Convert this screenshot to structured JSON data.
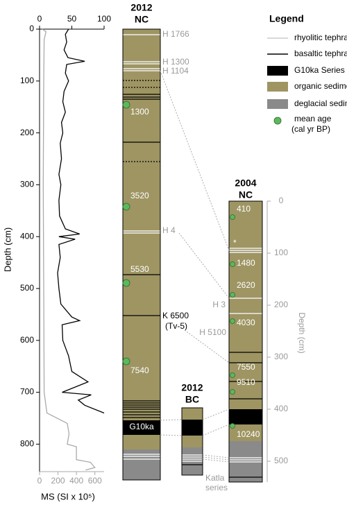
{
  "chart_data": [
    {
      "type": "line",
      "ylabel": "Depth (cm)",
      "xlabel": "MS (SI x 10⁵)",
      "ylim": [
        0,
        853
      ],
      "yticks": [
        0,
        100,
        200,
        300,
        400,
        500,
        600,
        700,
        800
      ],
      "xlim": [
        0,
        100
      ],
      "xticks": [
        0,
        50,
        100
      ],
      "x2lim": [
        0,
        700
      ],
      "x2ticks": [
        0,
        200,
        400,
        600
      ],
      "series": [
        {
          "color": "#000000",
          "depth": [
            0,
            10,
            25,
            40,
            55,
            62,
            68,
            85,
            100,
            120,
            140,
            160,
            180,
            200,
            220,
            250,
            280,
            300,
            330,
            360,
            385,
            395,
            400,
            405,
            415,
            440,
            470,
            500,
            530,
            555,
            562,
            570,
            600,
            630,
            660,
            680,
            690,
            700,
            705,
            715,
            725,
            740
          ],
          "values": [
            45,
            40,
            42,
            38,
            44,
            70,
            42,
            40,
            45,
            38,
            36,
            40,
            34,
            36,
            32,
            34,
            30,
            33,
            30,
            31,
            40,
            62,
            30,
            55,
            30,
            32,
            28,
            30,
            33,
            50,
            62,
            35,
            36,
            45,
            50,
            75,
            55,
            35,
            80,
            60,
            70,
            100
          ]
        },
        {
          "color": "#aaaaaa",
          "axis": "x2",
          "depth": [
            0,
            5,
            20,
            100,
            300,
            500,
            700,
            740,
            760,
            780,
            800,
            805,
            830,
            835,
            845,
            850
          ],
          "values": [
            30,
            70,
            50,
            45,
            40,
            45,
            50,
            80,
            300,
            320,
            300,
            400,
            400,
            550,
            600,
            500
          ]
        }
      ]
    },
    {
      "type": "core",
      "title": [
        "2012",
        "NC"
      ],
      "tephra": [
        "H 1766",
        "H 1300",
        "H 1104",
        "H 4"
      ],
      "marker": [
        "K 6500",
        "(Tv-5)"
      ],
      "unit": "G10ka",
      "ages": [
        "1300",
        "3520",
        "5530",
        "7540"
      ]
    },
    {
      "type": "core",
      "title": [
        "2012",
        "BC"
      ],
      "annotation": [
        "Katla",
        "series"
      ]
    },
    {
      "type": "core",
      "title": [
        "2004",
        "NC"
      ],
      "ylabel": "Depth (cm)",
      "ylim": [
        0,
        540
      ],
      "yticks": [
        0,
        100,
        200,
        300,
        400,
        500
      ],
      "tephra": [
        "*",
        "H 3",
        "H 5100"
      ],
      "ages": [
        "410",
        "1480",
        "2620",
        "4030",
        "7550",
        "9510",
        "10240"
      ]
    }
  ],
  "legend": {
    "title": "Legend",
    "items": [
      "rhyolitic tephra",
      "basaltic tephra",
      "G10ka Series",
      "organic sediment",
      "deglacial sediment"
    ],
    "mean_age": [
      "mean age",
      "(cal yr BP)"
    ]
  }
}
